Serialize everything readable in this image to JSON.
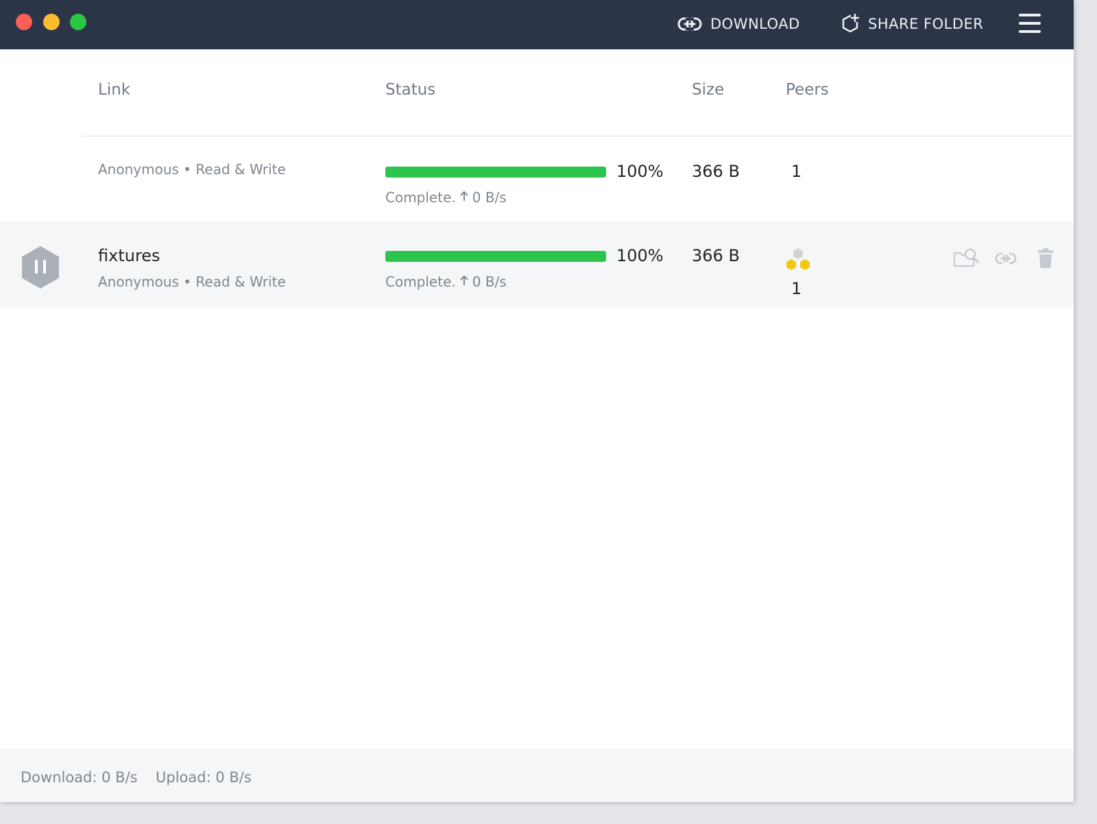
{
  "header": {
    "download_label": "DOWNLOAD",
    "share_label": "SHARE FOLDER"
  },
  "table": {
    "columns": [
      "Link",
      "Status",
      "Size",
      "Peers"
    ],
    "rows": [
      {
        "name": "",
        "meta": "Anonymous • Read & Write",
        "progress_percent": 100,
        "progress_label": "100%",
        "status_text": "Complete.",
        "upload_rate": "0 B/s",
        "size": "366 B",
        "peers": "1"
      },
      {
        "name": "fixtures",
        "meta": "Anonymous • Read & Write",
        "progress_percent": 100,
        "progress_label": "100%",
        "status_text": "Complete.",
        "upload_rate": "0 B/s",
        "size": "366 B",
        "peers": "1"
      }
    ]
  },
  "footer": {
    "download": "Download: 0 B/s",
    "upload": "Upload: 0 B/s"
  },
  "colors": {
    "titlebar": "#2b3547",
    "progress": "#2bc54e",
    "peer_active": "#f2c811",
    "peer_idle": "#d0d3d7"
  },
  "icons": {
    "download": "link-icon",
    "share": "hexagon-plus-icon",
    "menu": "hamburger-menu-icon",
    "pause": "pause-hexagon-icon",
    "peers": "peers-hexagons-icon",
    "finder": "folder-search-icon",
    "copy_link": "link-icon",
    "delete": "trash-icon",
    "upload_arrow": "arrow-up-icon"
  }
}
